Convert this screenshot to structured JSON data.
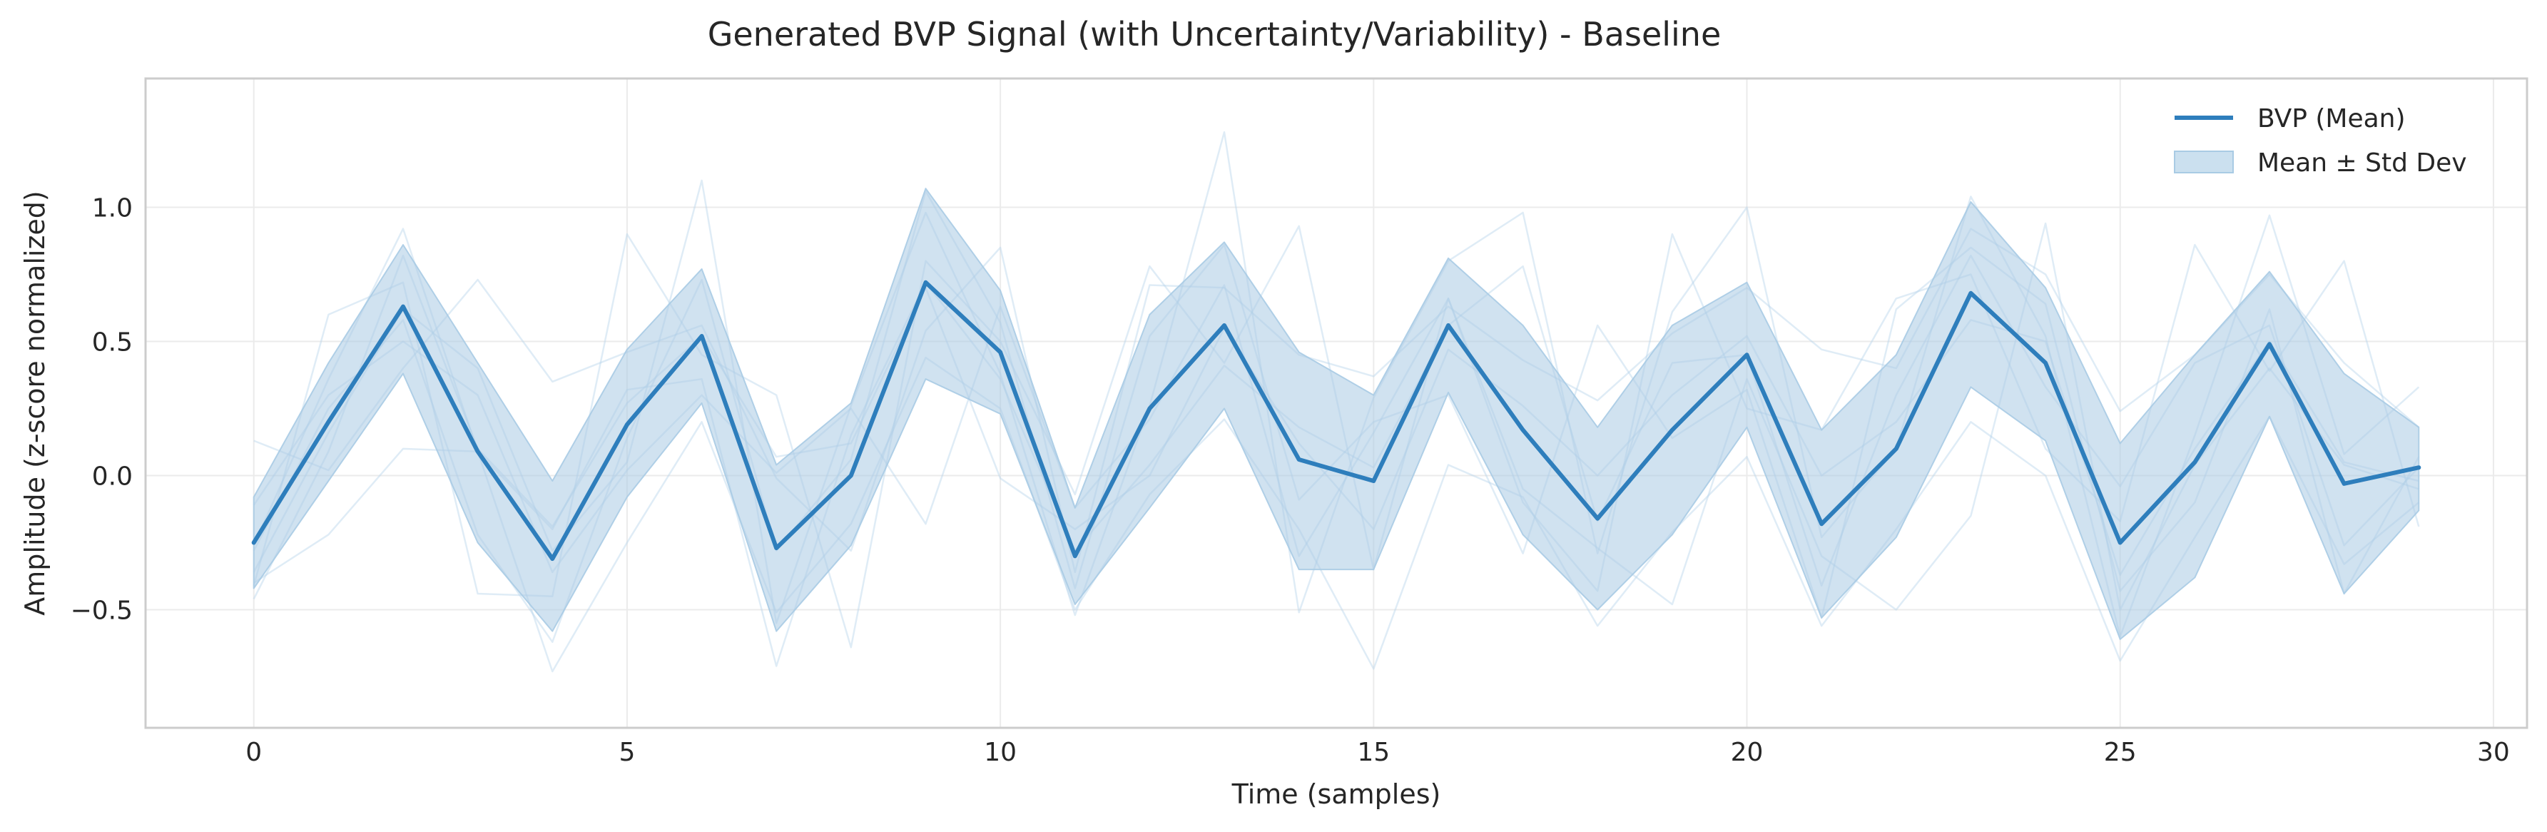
{
  "chart_data": {
    "type": "line",
    "title": "Generated BVP Signal (with Uncertainty/Variability) - Baseline",
    "xlabel": "Time (samples)",
    "ylabel": "Amplitude (z-score normalized)",
    "xlim": [
      -1.45,
      30.45
    ],
    "ylim": [
      -0.94,
      1.48
    ],
    "x_ticks": [
      0,
      5,
      10,
      15,
      20,
      25,
      30
    ],
    "y_ticks": [
      -0.5,
      0.0,
      0.5,
      1.0
    ],
    "x_tick_labels": [
      "0",
      "5",
      "10",
      "15",
      "20",
      "25",
      "30"
    ],
    "y_tick_labels": [
      "−0.5",
      "0.0",
      "0.5",
      "1.0"
    ],
    "grid": true,
    "legend_position": "top-right",
    "x": [
      0,
      1,
      2,
      3,
      4,
      5,
      6,
      7,
      8,
      9,
      10,
      11,
      12,
      13,
      14,
      15,
      16,
      17,
      18,
      19,
      20,
      21,
      22,
      23,
      24,
      25,
      26,
      27,
      28,
      29
    ],
    "series": [
      {
        "name": "BVP (Mean)",
        "kind": "line",
        "color": "#2e7ebc",
        "values": [
          -0.25,
          0.2,
          0.63,
          0.09,
          -0.31,
          0.19,
          0.52,
          -0.27,
          0.0,
          0.72,
          0.46,
          -0.3,
          0.25,
          0.56,
          0.06,
          -0.02,
          0.56,
          0.17,
          -0.16,
          0.17,
          0.45,
          -0.18,
          0.1,
          0.68,
          0.42,
          -0.25,
          0.05,
          0.49,
          -0.03,
          0.03
        ]
      },
      {
        "name": "Mean ± Std Dev",
        "kind": "band",
        "color": "#a9cbe4",
        "upper": [
          -0.08,
          0.42,
          0.86,
          0.42,
          -0.02,
          0.47,
          0.77,
          0.04,
          0.27,
          1.07,
          0.69,
          -0.12,
          0.6,
          0.87,
          0.46,
          0.3,
          0.81,
          0.56,
          0.18,
          0.56,
          0.72,
          0.17,
          0.45,
          1.02,
          0.7,
          0.12,
          0.45,
          0.76,
          0.38,
          0.18
        ],
        "lower": [
          -0.42,
          -0.02,
          0.38,
          -0.25,
          -0.58,
          -0.08,
          0.27,
          -0.58,
          -0.26,
          0.36,
          0.23,
          -0.48,
          -0.12,
          0.25,
          -0.35,
          -0.35,
          0.31,
          -0.22,
          -0.5,
          -0.22,
          0.18,
          -0.53,
          -0.23,
          0.33,
          0.13,
          -0.61,
          -0.38,
          0.22,
          -0.44,
          -0.13
        ]
      }
    ],
    "samples": [
      {
        "values": [
          -0.4,
          -0.22,
          0.1,
          0.09,
          -0.73,
          -0.25,
          0.2,
          -0.51,
          -0.18,
          0.44,
          0.25,
          -0.5,
          -0.07,
          0.21,
          -0.2,
          -0.72,
          0.04,
          -0.08,
          -0.56,
          -0.21,
          0.07,
          -0.56,
          -0.2,
          0.2,
          0.0,
          -0.69,
          -0.23,
          0.22,
          -0.33,
          -0.1
        ]
      },
      {
        "values": [
          0.13,
          0.02,
          0.4,
          0.73,
          0.35,
          0.46,
          0.56,
          -0.01,
          -0.28,
          0.54,
          0.85,
          -0.36,
          0.71,
          0.7,
          0.45,
          0.37,
          0.63,
          0.43,
          0.28,
          0.53,
          0.7,
          0.47,
          0.4,
          0.92,
          0.75,
          0.24,
          0.45,
          0.75,
          0.42,
          0.18
        ]
      },
      {
        "values": [
          -0.41,
          0.6,
          0.72,
          -0.44,
          -0.45,
          0.9,
          0.45,
          0.3,
          -0.64,
          0.8,
          0.5,
          -0.07,
          0.78,
          0.42,
          0.93,
          -0.35,
          0.66,
          -0.1,
          -0.43,
          0.9,
          0.25,
          0.17,
          0.66,
          0.75,
          0.1,
          -0.17,
          0.86,
          0.39,
          0.8,
          -0.19
        ]
      },
      {
        "values": [
          -0.36,
          0.16,
          0.62,
          0.4,
          -0.28,
          0.05,
          1.1,
          -0.55,
          0.26,
          0.98,
          0.38,
          -0.52,
          0.26,
          1.28,
          -0.51,
          0.29,
          0.8,
          0.98,
          -0.29,
          0.61,
          1.0,
          -0.23,
          0.1,
          1.04,
          0.52,
          -0.6,
          0.15,
          0.97,
          0.08,
          0.33
        ]
      },
      {
        "values": [
          -0.26,
          0.36,
          0.92,
          0.09,
          -0.2,
          0.32,
          0.36,
          -0.71,
          0.15,
          0.72,
          0.36,
          -0.28,
          0.04,
          0.41,
          0.18,
          0.03,
          0.56,
          0.78,
          -0.17,
          0.42,
          0.45,
          -0.41,
          0.3,
          0.82,
          0.33,
          -0.04,
          0.42,
          0.56,
          -0.26,
          0.03
        ]
      },
      {
        "values": [
          -0.28,
          0.25,
          0.58,
          -0.22,
          -0.62,
          0.14,
          0.73,
          -0.28,
          0.06,
          1.06,
          0.57,
          -0.42,
          0.52,
          0.86,
          -0.09,
          0.2,
          0.3,
          -0.29,
          0.56,
          0.14,
          0.32,
          -0.53,
          0.62,
          0.85,
          0.64,
          -0.43,
          -0.1,
          0.62,
          -0.44,
          0.07
        ]
      },
      {
        "values": [
          -0.11,
          0.3,
          0.5,
          0.3,
          -0.36,
          0.02,
          0.3,
          0.01,
          0.25,
          -0.18,
          0.63,
          -0.12,
          0.21,
          0.71,
          -0.3,
          0.16,
          0.66,
          -0.05,
          -0.27,
          -0.48,
          0.36,
          -0.3,
          -0.5,
          -0.15,
          0.94,
          -0.5,
          0.04,
          0.4,
          0.04,
          -0.05
        ]
      },
      {
        "values": [
          -0.46,
          0.09,
          0.82,
          0.1,
          -0.19,
          0.27,
          0.52,
          0.07,
          0.12,
          0.7,
          -0.01,
          -0.2,
          0.0,
          0.55,
          0.12,
          -0.2,
          0.47,
          0.26,
          0.0,
          0.3,
          0.52,
          0.0,
          0.2,
          0.58,
          0.5,
          -0.37,
          0.1,
          0.5,
          0.05,
          -0.02
        ]
      }
    ]
  }
}
